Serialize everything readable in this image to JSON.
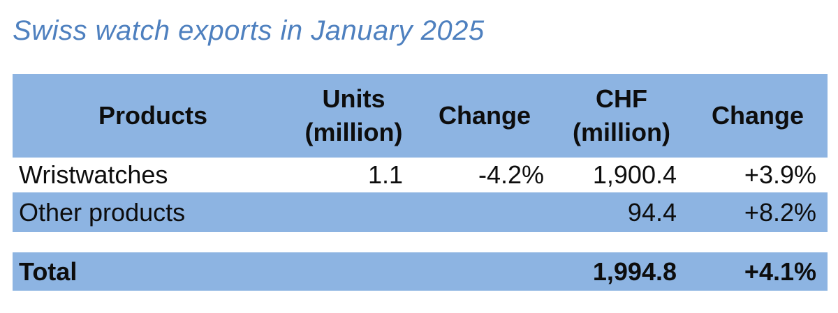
{
  "title": "Swiss watch exports in January 2025",
  "colors": {
    "accent_blue": "#8db4e2",
    "title_blue": "#4e80bf",
    "text": "#0d0d0d"
  },
  "table": {
    "header": [
      {
        "lines": [
          "Products",
          ""
        ]
      },
      {
        "lines": [
          "Units",
          "(million)"
        ]
      },
      {
        "lines": [
          "Change",
          ""
        ]
      },
      {
        "lines": [
          "CHF",
          "(million)"
        ]
      },
      {
        "lines": [
          "Change",
          ""
        ]
      }
    ],
    "rows": [
      {
        "cells": [
          "Wristwatches",
          "1.1",
          "-4.2%",
          "1,900.4",
          "+3.9%"
        ]
      },
      {
        "cells": [
          "Other products",
          "",
          "",
          "94.4",
          "+8.2%"
        ]
      }
    ],
    "total": {
      "cells": [
        "Total",
        "",
        "",
        "1,994.8",
        "+4.1%"
      ]
    }
  },
  "chart_data": {
    "type": "table",
    "title": "Swiss watch exports in January 2025",
    "columns": [
      "Products",
      "Units (million)",
      "Change",
      "CHF (million)",
      "Change"
    ],
    "rows": [
      [
        "Wristwatches",
        1.1,
        "-4.2%",
        1900.4,
        "+3.9%"
      ],
      [
        "Other products",
        null,
        null,
        94.4,
        "+8.2%"
      ],
      [
        "Total",
        null,
        null,
        1994.8,
        "+4.1%"
      ]
    ]
  }
}
